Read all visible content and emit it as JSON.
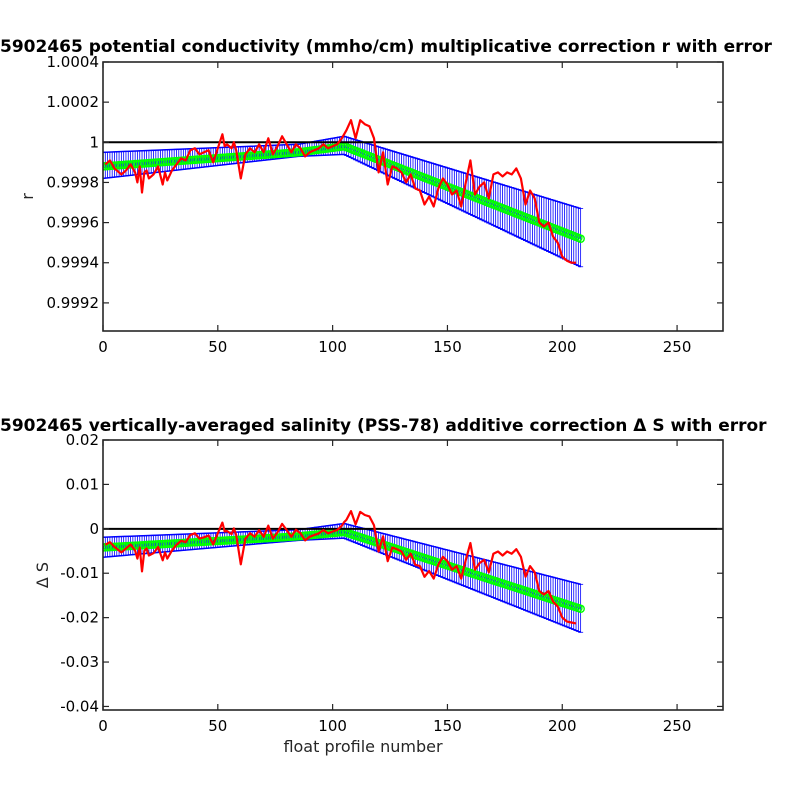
{
  "chart_data": [
    {
      "type": "line",
      "title": "5902465 potential conductivity (mmho/cm) multiplicative correction r with error",
      "xlabel": "",
      "ylabel": "r",
      "xlim": [
        0,
        270
      ],
      "ylim": [
        0.99906,
        1.0004
      ],
      "xticks": [
        0,
        50,
        100,
        150,
        200,
        250
      ],
      "xtick_labels": [
        "0",
        "50",
        "100",
        "150",
        "200",
        "250"
      ],
      "yticks": [
        0.9992,
        0.9994,
        0.9996,
        0.9998,
        1.0,
        1.0002,
        1.0004
      ],
      "ytick_labels": [
        "0.9992",
        "0.9994",
        "0.9996",
        "0.9998",
        "1",
        "1.0002",
        "1.0004"
      ],
      "reference_line": 1.0,
      "grid": false,
      "series": [
        {
          "role": "raw",
          "color": "#ff0000",
          "x": [
            1,
            3,
            5,
            8,
            10,
            12,
            14,
            15,
            16,
            17,
            18,
            19,
            20,
            22,
            24,
            26,
            27,
            28,
            30,
            32,
            34,
            36,
            38,
            40,
            42,
            44,
            46,
            48,
            50,
            52,
            53,
            54,
            56,
            57,
            58,
            60,
            62,
            64,
            66,
            68,
            70,
            72,
            74,
            76,
            78,
            80,
            82,
            84,
            86,
            88,
            90,
            92,
            94,
            96,
            98,
            100,
            102,
            104,
            105,
            106,
            108,
            110,
            112,
            114,
            116,
            118,
            120,
            122,
            124,
            126,
            128,
            130,
            132,
            134,
            136,
            138,
            140,
            142,
            144,
            146,
            148,
            150,
            152,
            154,
            156,
            158,
            160,
            162,
            164,
            166,
            168,
            170,
            172,
            174,
            176,
            178,
            180,
            182,
            184,
            186,
            188,
            190,
            192,
            194,
            196,
            198,
            200,
            202,
            204,
            206
          ],
          "y": [
            0.99989,
            0.99991,
            0.99987,
            0.99984,
            0.99986,
            0.99989,
            0.99985,
            0.9998,
            0.99988,
            0.99975,
            0.99985,
            0.99986,
            0.99982,
            0.99984,
            0.99988,
            0.99979,
            0.99985,
            0.99981,
            0.99986,
            0.99989,
            0.99992,
            0.99991,
            0.99996,
            0.99997,
            0.99994,
            0.99995,
            0.99996,
            0.9999,
            0.99997,
            1.00004,
            0.99998,
            0.99999,
            0.99997,
            1.0,
            0.99996,
            0.99982,
            0.99994,
            0.99997,
            0.99995,
            0.99999,
            0.99995,
            1.00002,
            0.99994,
            0.99998,
            1.00003,
            0.99999,
            0.99995,
            0.99999,
            0.99997,
            0.99993,
            0.99995,
            0.99996,
            0.99997,
            0.99999,
            0.99997,
            0.99998,
            0.99999,
            1.00002,
            1.00004,
            1.00006,
            1.00011,
            1.00002,
            1.00011,
            1.00009,
            1.00008,
            1.00002,
            0.99985,
            0.99995,
            0.99979,
            0.99988,
            0.99987,
            0.99985,
            0.9998,
            0.99984,
            0.99977,
            0.99976,
            0.99969,
            0.99973,
            0.99968,
            0.99977,
            0.99982,
            0.99979,
            0.99974,
            0.99976,
            0.99968,
            0.9998,
            0.99991,
            0.99974,
            0.99978,
            0.9998,
            0.99972,
            0.99984,
            0.99985,
            0.99983,
            0.99985,
            0.99984,
            0.99987,
            0.99982,
            0.99969,
            0.99976,
            0.99972,
            0.9996,
            0.99958,
            0.9996,
            0.99953,
            0.9995,
            0.99943,
            0.99941,
            0.9994,
            0.9994
          ]
        },
        {
          "role": "fit",
          "color": "#00ff00",
          "x": [
            0,
            85,
            105,
            208
          ],
          "y": [
            0.99988,
            0.99995,
            0.99998,
            0.99952
          ]
        },
        {
          "role": "error-band",
          "color": "#0000ff",
          "x": [
            0,
            85,
            105,
            208
          ],
          "upper": [
            0.99995,
            0.99999,
            1.00003,
            0.99967
          ],
          "lower": [
            0.99982,
            0.99993,
            0.99994,
            0.99938
          ]
        }
      ]
    },
    {
      "type": "line",
      "title": "5902465 vertically-averaged salinity (PSS-78) additive correction Δ S with error",
      "xlabel": "float profile number",
      "ylabel": "Δ S",
      "xlim": [
        0,
        270
      ],
      "ylim": [
        -0.0408,
        0.02
      ],
      "xticks": [
        0,
        50,
        100,
        150,
        200,
        250
      ],
      "xtick_labels": [
        "0",
        "50",
        "100",
        "150",
        "200",
        "250"
      ],
      "yticks": [
        -0.04,
        -0.03,
        -0.02,
        -0.01,
        0,
        0.01,
        0.02
      ],
      "ytick_labels": [
        "-0.04",
        "-0.03",
        "-0.02",
        "-0.01",
        "0",
        "0.01",
        "0.02"
      ],
      "reference_line": 0,
      "grid": false,
      "series": [
        {
          "role": "raw",
          "color": "#ff0000",
          "x": [
            1,
            3,
            5,
            8,
            10,
            12,
            14,
            15,
            16,
            17,
            18,
            19,
            20,
            22,
            24,
            26,
            27,
            28,
            30,
            32,
            34,
            36,
            38,
            40,
            42,
            44,
            46,
            48,
            50,
            52,
            53,
            54,
            56,
            57,
            58,
            60,
            62,
            64,
            66,
            68,
            70,
            72,
            74,
            76,
            78,
            80,
            82,
            84,
            86,
            88,
            90,
            92,
            94,
            96,
            98,
            100,
            102,
            104,
            105,
            106,
            108,
            110,
            112,
            114,
            116,
            118,
            120,
            122,
            124,
            126,
            128,
            130,
            132,
            134,
            136,
            138,
            140,
            142,
            144,
            146,
            148,
            150,
            152,
            154,
            156,
            158,
            160,
            162,
            164,
            166,
            168,
            170,
            172,
            174,
            176,
            178,
            180,
            182,
            184,
            186,
            188,
            190,
            192,
            194,
            196,
            198,
            200,
            202,
            204,
            206
          ],
          "y": [
            -0.0036,
            -0.003,
            -0.0041,
            -0.0053,
            -0.0044,
            -0.0035,
            -0.0049,
            -0.0067,
            -0.0042,
            -0.0096,
            -0.005,
            -0.0044,
            -0.006,
            -0.0055,
            -0.0041,
            -0.0071,
            -0.0053,
            -0.0067,
            -0.0049,
            -0.0036,
            -0.0027,
            -0.003,
            -0.0014,
            -0.001,
            -0.0022,
            -0.0019,
            -0.0015,
            -0.0035,
            -0.001,
            0.0014,
            -0.0006,
            -0.0005,
            -0.0012,
            0.0001,
            -0.0014,
            -0.008,
            -0.0022,
            -0.001,
            -0.0018,
            -0.0003,
            -0.0018,
            0.0007,
            -0.0022,
            -0.0008,
            0.0011,
            -0.0003,
            -0.0018,
            -0.0002,
            -0.001,
            -0.0026,
            -0.0018,
            -0.0014,
            -0.001,
            -0.0003,
            -0.001,
            -0.0006,
            -0.0003,
            0.0007,
            0.0015,
            0.002,
            0.004,
            0.001,
            0.0038,
            0.0031,
            0.0028,
            0.0008,
            -0.0051,
            -0.0017,
            -0.0073,
            -0.0042,
            -0.0046,
            -0.0051,
            -0.007,
            -0.0056,
            -0.0081,
            -0.0084,
            -0.0108,
            -0.0095,
            -0.0112,
            -0.0081,
            -0.0063,
            -0.0073,
            -0.0092,
            -0.0084,
            -0.0112,
            -0.007,
            -0.0032,
            -0.0092,
            -0.0077,
            -0.007,
            -0.0098,
            -0.0056,
            -0.0051,
            -0.006,
            -0.0051,
            -0.0056,
            -0.0046,
            -0.0063,
            -0.0108,
            -0.0084,
            -0.0098,
            -0.014,
            -0.0148,
            -0.014,
            -0.0164,
            -0.0175,
            -0.02,
            -0.0209,
            -0.0211,
            -0.0213
          ]
        },
        {
          "role": "fit",
          "color": "#00ff00",
          "x": [
            0,
            85,
            105,
            208
          ],
          "y": [
            -0.0042,
            -0.0017,
            -0.0007,
            -0.018
          ]
        },
        {
          "role": "error-band",
          "color": "#0000ff",
          "x": [
            0,
            85,
            105,
            208
          ],
          "upper": [
            -0.0019,
            -0.0002,
            0.0012,
            -0.0125
          ],
          "lower": [
            -0.0064,
            -0.0026,
            -0.0021,
            -0.0233
          ]
        }
      ]
    }
  ]
}
